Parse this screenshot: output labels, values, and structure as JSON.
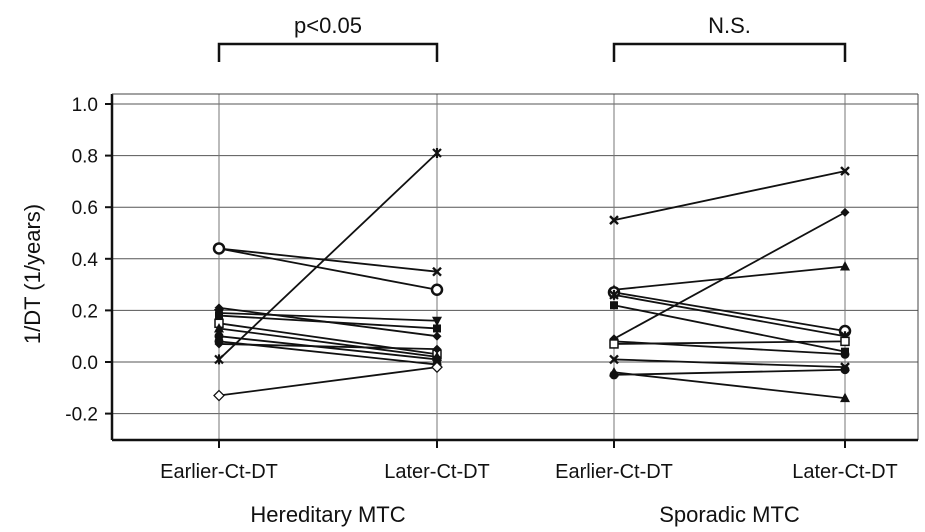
{
  "chart_data": {
    "type": "line",
    "ylabel": "1/DT (1/years)",
    "ylim": [
      -0.3,
      1.05
    ],
    "yticks": [
      "1.0",
      "0.8",
      "0.6",
      "0.4",
      "0.2",
      "0.0",
      "-0.2"
    ],
    "ytick_values": [
      1.0,
      0.8,
      0.6,
      0.4,
      0.2,
      0.0,
      -0.2
    ],
    "grid": true,
    "categories": [
      "Earlier-Ct-DT",
      "Later-Ct-DT",
      "Earlier-Ct-DT",
      "Later-Ct-DT"
    ],
    "groups": [
      {
        "name": "Hereditary MTC",
        "significance": "p<0.05",
        "pairs": [
          {
            "marker": "cross",
            "values": [
              0.44,
              0.35
            ]
          },
          {
            "marker": "circle-open",
            "values": [
              0.44,
              0.28
            ]
          },
          {
            "marker": "diamond",
            "values": [
              0.21,
              0.1
            ]
          },
          {
            "marker": "triangle-down",
            "values": [
              0.19,
              0.16
            ]
          },
          {
            "marker": "square",
            "values": [
              0.18,
              0.13
            ]
          },
          {
            "marker": "square-open",
            "values": [
              0.15,
              0.03
            ]
          },
          {
            "marker": "triangle",
            "values": [
              0.13,
              0.02
            ]
          },
          {
            "marker": "circle",
            "values": [
              0.1,
              0.01
            ]
          },
          {
            "marker": "diamond",
            "values": [
              0.07,
              0.05
            ]
          },
          {
            "marker": "circle",
            "values": [
              0.08,
              -0.01
            ]
          },
          {
            "marker": "star",
            "values": [
              0.01,
              0.81
            ]
          },
          {
            "marker": "diamond-open",
            "values": [
              -0.13,
              -0.02
            ]
          }
        ]
      },
      {
        "name": "Sporadic MTC",
        "significance": "N.S.",
        "pairs": [
          {
            "marker": "cross",
            "values": [
              0.55,
              0.74
            ]
          },
          {
            "marker": "triangle",
            "values": [
              0.28,
              0.37
            ]
          },
          {
            "marker": "circle-open",
            "values": [
              0.27,
              0.12
            ]
          },
          {
            "marker": "star",
            "values": [
              0.26,
              0.1
            ]
          },
          {
            "marker": "square",
            "values": [
              0.22,
              0.04
            ]
          },
          {
            "marker": "diamond",
            "values": [
              0.09,
              0.58
            ]
          },
          {
            "marker": "circle",
            "values": [
              0.08,
              0.03
            ]
          },
          {
            "marker": "square-open",
            "values": [
              0.07,
              0.08
            ]
          },
          {
            "marker": "cross",
            "values": [
              0.01,
              -0.02
            ]
          },
          {
            "marker": "triangle",
            "values": [
              -0.04,
              -0.14
            ]
          },
          {
            "marker": "circle",
            "values": [
              -0.05,
              -0.03
            ]
          }
        ]
      }
    ]
  }
}
